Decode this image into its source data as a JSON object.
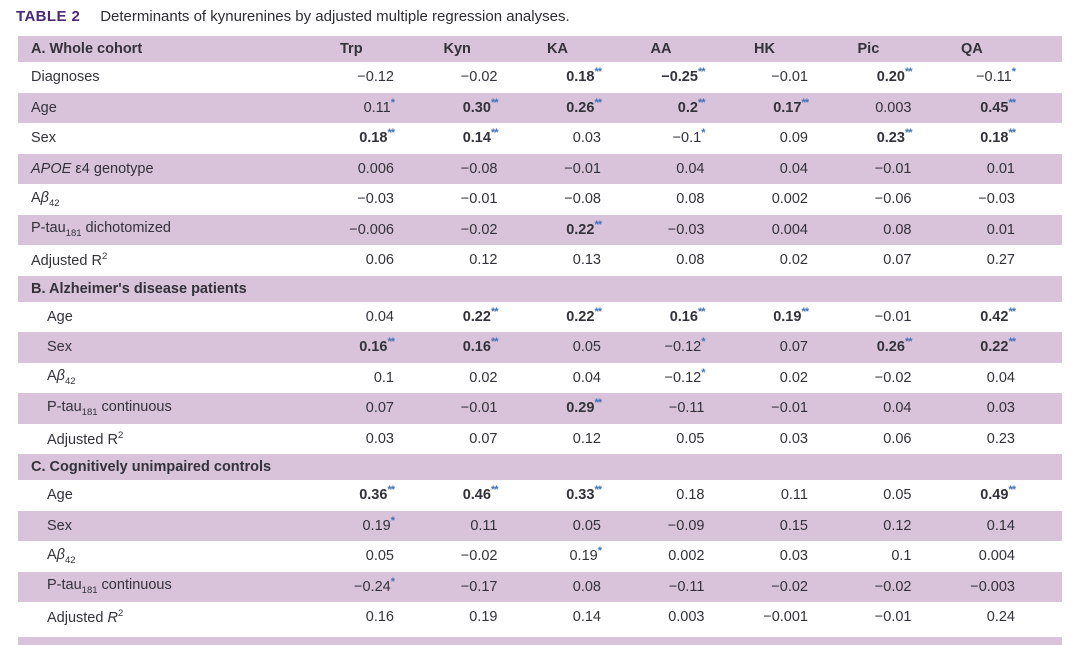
{
  "title": {
    "label": "TABLE 2",
    "caption": "Determinants of kynurenines by adjusted multiple regression analyses."
  },
  "colors": {
    "accent_purple": "#4b2878",
    "row_stripe": "#d9c3da",
    "significance_star_blue": "#4272b8",
    "body_text": "#32323a"
  },
  "columns": [
    "Trp",
    "Kyn",
    "KA",
    "AA",
    "HK",
    "Pic",
    "QA"
  ],
  "significance_note": "values ending in * are significant (blue asterisks); ** values are bold",
  "sections": [
    {
      "header_html": "A. Whole cohort",
      "show_columns": true,
      "rows": [
        {
          "label_html": "Diagnoses",
          "indent": false,
          "values": [
            "−0.12",
            "−0.02",
            "0.18**",
            "−0.25**",
            "−0.01",
            "0.20**",
            "−0.11*"
          ]
        },
        {
          "label_html": "Age",
          "indent": false,
          "values": [
            "0.11*",
            "0.30**",
            "0.26**",
            "0.2**",
            "0.17**",
            "0.003",
            "0.45**"
          ]
        },
        {
          "label_html": "Sex",
          "indent": false,
          "values": [
            "0.18**",
            "0.14**",
            "0.03",
            "−0.1*",
            "0.09",
            "0.23**",
            "0.18**"
          ]
        },
        {
          "label_html": "<i>APOE</i> ε4 genotype",
          "indent": false,
          "values": [
            "0.006",
            "−0.08",
            "−0.01",
            "0.04",
            "0.04",
            "−0.01",
            "0.01"
          ]
        },
        {
          "label_html": "A<i>β</i><sub>42</sub>",
          "indent": false,
          "values": [
            "−0.03",
            "−0.01",
            "−0.08",
            "0.08",
            "0.002",
            "−0.06",
            "−0.03"
          ]
        },
        {
          "label_html": "P-tau<sub>181</sub> dichotomized",
          "indent": false,
          "values": [
            "−0.006",
            "−0.02",
            "0.22**",
            "−0.03",
            "0.004",
            "0.08",
            "0.01"
          ]
        },
        {
          "label_html": "Adjusted R<sup>2</sup>",
          "indent": false,
          "values": [
            "0.06",
            "0.12",
            "0.13",
            "0.08",
            "0.02",
            "0.07",
            "0.27"
          ]
        }
      ]
    },
    {
      "header_html": "B. Alzheimer's disease patients",
      "show_columns": false,
      "rows": [
        {
          "label_html": "Age",
          "indent": true,
          "values": [
            "0.04",
            "0.22**",
            "0.22**",
            "0.16**",
            "0.19**",
            "−0.01",
            "0.42**"
          ]
        },
        {
          "label_html": "Sex",
          "indent": true,
          "values": [
            "0.16**",
            "0.16**",
            "0.05",
            "−0.12*",
            "0.07",
            "0.26**",
            "0.22**"
          ]
        },
        {
          "label_html": "A<i>β</i><sub>42</sub>",
          "indent": true,
          "values": [
            "0.1",
            "0.02",
            "0.04",
            "−0.12*",
            "0.02",
            "−0.02",
            "0.04"
          ]
        },
        {
          "label_html": "P-tau<sub>181</sub> continuous",
          "indent": true,
          "values": [
            "0.07",
            "−0.01",
            "0.29**",
            "−0.11",
            "−0.01",
            "0.04",
            "0.03"
          ]
        },
        {
          "label_html": "Adjusted R<sup>2</sup>",
          "indent": true,
          "values": [
            "0.03",
            "0.07",
            "0.12",
            "0.05",
            "0.03",
            "0.06",
            "0.23"
          ]
        }
      ]
    },
    {
      "header_html": "C. Cognitively unimpaired controls",
      "show_columns": false,
      "rows": [
        {
          "label_html": "Age",
          "indent": true,
          "values": [
            "0.36**",
            "0.46**",
            "0.33**",
            "0.18",
            "0.11",
            "0.05",
            "0.49**"
          ]
        },
        {
          "label_html": "Sex",
          "indent": true,
          "values": [
            "0.19*",
            "0.11",
            "0.05",
            "−0.09",
            "0.15",
            "0.12",
            "0.14"
          ]
        },
        {
          "label_html": "A<i>β</i><sub>42</sub>",
          "indent": true,
          "values": [
            "0.05",
            "−0.02",
            "0.19*",
            "0.002",
            "0.03",
            "0.1",
            "0.004"
          ]
        },
        {
          "label_html": "P-tau<sub>181</sub> continuous",
          "indent": true,
          "values": [
            "−0.24*",
            "−0.17",
            "0.08",
            "−0.11",
            "−0.02",
            "−0.02",
            "−0.003"
          ]
        },
        {
          "label_html": "Adjusted <i>R</i><sup>2</sup>",
          "indent": true,
          "values": [
            "0.16",
            "0.19",
            "0.14",
            "0.003",
            "−0.001",
            "−0.01",
            "0.24"
          ]
        }
      ]
    }
  ]
}
